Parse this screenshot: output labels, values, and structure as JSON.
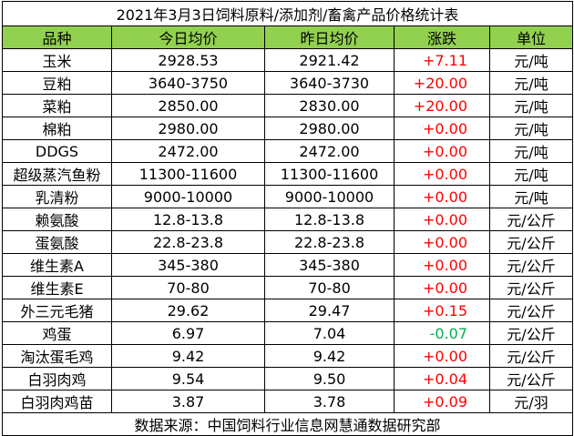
{
  "title": "2021年3月3日饲料原料/添加剂/畜禽产品价格统计表",
  "header": [
    "品种",
    "今日均价",
    "昨日均价",
    "涨跌",
    "单位"
  ],
  "rows": [
    [
      "玉米",
      "2928.53",
      "2921.42",
      "+7.11",
      "元/吨"
    ],
    [
      "豆粕",
      "3640-3750",
      "3640-3730",
      "+20.00",
      "元/吨"
    ],
    [
      "菜粕",
      "2850.00",
      "2830.00",
      "+20.00",
      "元/吨"
    ],
    [
      "棉粕",
      "2980.00",
      "2980.00",
      "+0.00",
      "元/吨"
    ],
    [
      "DDGS",
      "2472.00",
      "2472.00",
      "+0.00",
      "元/吨"
    ],
    [
      "超级蒸汽鱼粉",
      "11300-11600",
      "11300-11600",
      "+0.00",
      "元/吨"
    ],
    [
      "乳清粉",
      "9000-10000",
      "9000-10000",
      "+0.00",
      "元/吨"
    ],
    [
      "赖氨酸",
      "12.8-13.8",
      "12.8-13.8",
      "+0.00",
      "元/公斤"
    ],
    [
      "蛋氨酸",
      "22.8-23.8",
      "22.8-23.8",
      "+0.00",
      "元/公斤"
    ],
    [
      "维生素A",
      "345-380",
      "345-380",
      "+0.00",
      "元/公斤"
    ],
    [
      "维生素E",
      "70-80",
      "70-80",
      "+0.00",
      "元/公斤"
    ],
    [
      "外三元毛猪",
      "29.62",
      "29.47",
      "+0.15",
      "元/公斤"
    ],
    [
      "鸡蛋",
      "6.97",
      "7.04",
      "-0.07",
      "元/公斤"
    ],
    [
      "淘汰蛋毛鸡",
      "9.42",
      "9.42",
      "+0.00",
      "元/公斤"
    ],
    [
      "白羽肉鸡",
      "9.54",
      "9.50",
      "+0.04",
      "元/公斤"
    ],
    [
      "白羽肉鸡苗",
      "3.87",
      "3.78",
      "+0.09",
      "元/羽"
    ]
  ],
  "footer": "数据来源：中国饲料行业信息网慧通数据研究部"
}
